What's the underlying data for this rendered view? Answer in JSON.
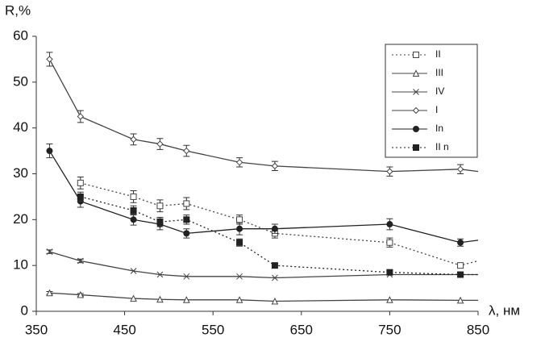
{
  "chart_data": {
    "type": "line",
    "y_label": "R,%",
    "x_label": "λ, нм",
    "x": [
      365,
      400,
      460,
      490,
      520,
      580,
      620,
      750,
      830,
      850
    ],
    "xlim": [
      350,
      850
    ],
    "xticks": [
      350,
      450,
      550,
      650,
      750,
      850
    ],
    "ylim": [
      0,
      60
    ],
    "yticks": [
      0,
      10,
      20,
      30,
      40,
      50,
      60
    ],
    "series": [
      {
        "name": "II",
        "color": "#444",
        "marker": "square-open",
        "dashed": true,
        "values": [
          null,
          28,
          25,
          23,
          23.5,
          20,
          17,
          15,
          10,
          11
        ],
        "errors": [
          null,
          1.3,
          1.3,
          1.3,
          1.3,
          1,
          1,
          1,
          0.5,
          null
        ]
      },
      {
        "name": "III",
        "color": "#444",
        "marker": "triangle-open",
        "dashed": false,
        "values": [
          4,
          3.6,
          2.8,
          2.6,
          2.5,
          2.5,
          2.2,
          2.5,
          2.4,
          2.4
        ],
        "errors": [
          0.3,
          0.3,
          null,
          null,
          null,
          null,
          null,
          null,
          null,
          null
        ]
      },
      {
        "name": "IV",
        "color": "#444",
        "marker": "cross",
        "dashed": false,
        "values": [
          13,
          11,
          8.8,
          8,
          7.6,
          7.6,
          7.3,
          8,
          8,
          8
        ],
        "errors": [
          0.4,
          0.4,
          null,
          null,
          null,
          null,
          null,
          null,
          null,
          null
        ]
      },
      {
        "name": "I",
        "color": "#444",
        "marker": "diamond-open",
        "dashed": false,
        "values": [
          55,
          42.5,
          37.5,
          36.5,
          35,
          32.5,
          31.7,
          30.5,
          31,
          30.5
        ],
        "errors": [
          1.5,
          1.3,
          1.2,
          1.2,
          1.2,
          1,
          1,
          1,
          1,
          null
        ]
      },
      {
        "name": "In",
        "color": "#222",
        "marker": "circle-filled",
        "dashed": false,
        "values": [
          35,
          24,
          20,
          19,
          17,
          18,
          18,
          19,
          15,
          15.5
        ],
        "errors": [
          1.5,
          1.3,
          1.2,
          1.2,
          1,
          1.3,
          1,
          1.2,
          0.8,
          null
        ]
      },
      {
        "name": "II n",
        "color": "#222",
        "marker": "square-filled",
        "dashed": true,
        "values": [
          null,
          25,
          22,
          19.5,
          20,
          15,
          10,
          8.5,
          8,
          8
        ],
        "errors": [
          null,
          1,
          1,
          1,
          1,
          0.8,
          0.5,
          0.5,
          0.5,
          null
        ]
      }
    ]
  }
}
